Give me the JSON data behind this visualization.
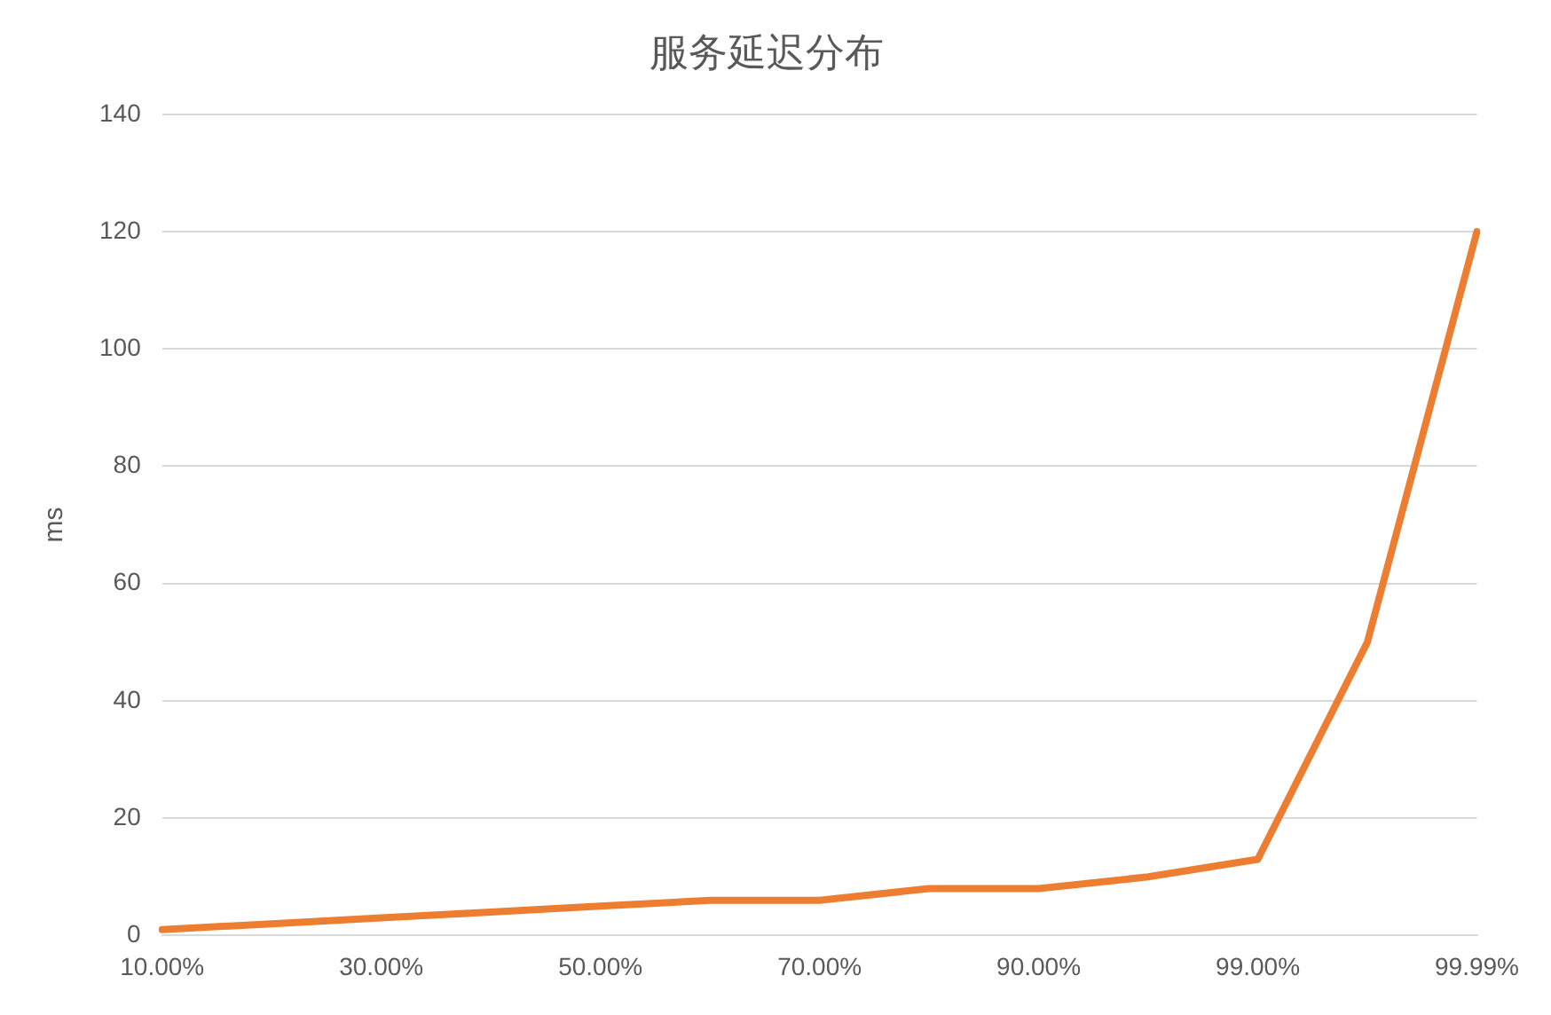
{
  "chart_data": {
    "type": "line",
    "title": "服务延迟分布",
    "ylabel": "ms",
    "categories": [
      "10.00%",
      null,
      "30.00%",
      null,
      "50.00%",
      null,
      "70.00%",
      null,
      "90.00%",
      null,
      "99.00%",
      null,
      "99.99%"
    ],
    "series": [
      {
        "color": "#ed7d31",
        "values": [
          1,
          2,
          3,
          4,
          5,
          6,
          6,
          8,
          8,
          10,
          13,
          50,
          120
        ]
      }
    ],
    "ylim": [
      0,
      140
    ],
    "yticks": [
      0,
      20,
      40,
      60,
      80,
      100,
      120,
      140
    ],
    "grid": "y",
    "legend": false,
    "marker": "none",
    "line_style": "solid"
  }
}
